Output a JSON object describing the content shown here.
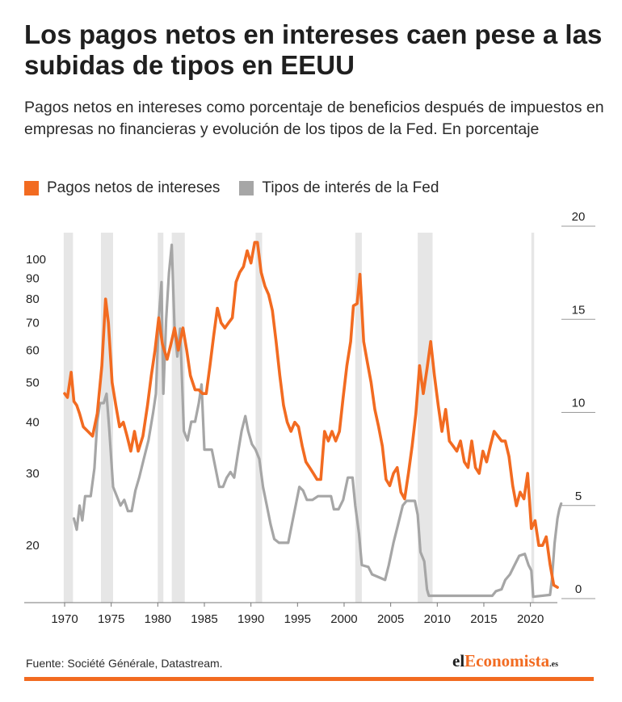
{
  "title": "Los pagos netos en intereses caen pese a las subidas de tipos en EEUU",
  "subtitle": "Pagos netos en intereses como porcentaje de beneficios después de impuestos en empresas no financieras y evolución de los tipos de la Fed. En porcentaje",
  "source": "Fuente: Société Générale, Datastream.",
  "logo": {
    "part1": "el",
    "part2": "Economista",
    "part3": ".es"
  },
  "colors": {
    "orange": "#f26b21",
    "gray": "#a6a6a6",
    "recession": "#e6e6e6",
    "text": "#222222"
  },
  "chart_data": {
    "type": "line",
    "xlim": [
      1970,
      2023.5
    ],
    "x_ticks": [
      1970,
      1975,
      1980,
      1985,
      1990,
      1995,
      2000,
      2005,
      2010,
      2015,
      2020
    ],
    "recessions": [
      [
        1969.9,
        1970.9
      ],
      [
        1973.9,
        1975.2
      ],
      [
        1980.0,
        1980.6
      ],
      [
        1981.5,
        1982.9
      ],
      [
        1990.5,
        1991.2
      ],
      [
        2001.2,
        2001.9
      ],
      [
        2007.9,
        2009.5
      ],
      [
        2020.1,
        2020.4
      ]
    ],
    "left_axis": {
      "scale": "log",
      "ylim": [
        14.5,
        120
      ],
      "ticks": [
        20,
        30,
        40,
        50,
        60,
        70,
        80,
        90,
        100
      ]
    },
    "right_axis": {
      "scale": "linear",
      "ylim": [
        0,
        20
      ],
      "ticks": [
        0,
        5,
        10,
        15,
        20
      ]
    },
    "series": [
      {
        "name": "Pagos netos de intereses",
        "axis": "left",
        "points": [
          [
            1970,
            47
          ],
          [
            1970.3,
            46
          ],
          [
            1970.7,
            53
          ],
          [
            1971,
            45
          ],
          [
            1971.3,
            44
          ],
          [
            1971.6,
            42
          ],
          [
            1972,
            39
          ],
          [
            1972.5,
            38
          ],
          [
            1973,
            37
          ],
          [
            1973.5,
            42
          ],
          [
            1974,
            55
          ],
          [
            1974.4,
            80
          ],
          [
            1974.7,
            70
          ],
          [
            1975.1,
            50
          ],
          [
            1975.5,
            44
          ],
          [
            1975.9,
            39
          ],
          [
            1976.3,
            40
          ],
          [
            1976.7,
            37
          ],
          [
            1977.1,
            34
          ],
          [
            1977.5,
            38
          ],
          [
            1977.9,
            34
          ],
          [
            1978.4,
            37
          ],
          [
            1978.9,
            44
          ],
          [
            1979.3,
            52
          ],
          [
            1979.7,
            60
          ],
          [
            1980.1,
            72
          ],
          [
            1980.5,
            62
          ],
          [
            1981,
            57
          ],
          [
            1981.4,
            62
          ],
          [
            1981.8,
            68
          ],
          [
            1982.2,
            60
          ],
          [
            1982.7,
            68
          ],
          [
            1983.1,
            60
          ],
          [
            1983.5,
            52
          ],
          [
            1984,
            48
          ],
          [
            1984.4,
            48
          ],
          [
            1984.8,
            47
          ],
          [
            1985.2,
            47
          ],
          [
            1985.6,
            55
          ],
          [
            1986,
            65
          ],
          [
            1986.4,
            76
          ],
          [
            1986.8,
            70
          ],
          [
            1987.2,
            68
          ],
          [
            1987.6,
            70
          ],
          [
            1988,
            72
          ],
          [
            1988.4,
            88
          ],
          [
            1988.8,
            93
          ],
          [
            1989.2,
            96
          ],
          [
            1989.6,
            105
          ],
          [
            1990,
            98
          ],
          [
            1990.4,
            110
          ],
          [
            1990.7,
            110
          ],
          [
            1991.1,
            93
          ],
          [
            1991.5,
            86
          ],
          [
            1991.9,
            82
          ],
          [
            1992.3,
            75
          ],
          [
            1992.7,
            63
          ],
          [
            1993.1,
            52
          ],
          [
            1993.5,
            44
          ],
          [
            1993.9,
            40
          ],
          [
            1994.3,
            38
          ],
          [
            1994.7,
            40
          ],
          [
            1995.1,
            39
          ],
          [
            1995.5,
            35
          ],
          [
            1995.9,
            32
          ],
          [
            1996.3,
            31
          ],
          [
            1996.7,
            30
          ],
          [
            1997.1,
            29
          ],
          [
            1997.5,
            29
          ],
          [
            1997.9,
            38
          ],
          [
            1998.3,
            36
          ],
          [
            1998.7,
            38
          ],
          [
            1999.1,
            36
          ],
          [
            1999.5,
            38
          ],
          [
            1999.9,
            46
          ],
          [
            2000.3,
            55
          ],
          [
            2000.7,
            63
          ],
          [
            2001,
            77
          ],
          [
            2001.4,
            78
          ],
          [
            2001.7,
            92
          ],
          [
            2002.1,
            63
          ],
          [
            2002.5,
            56
          ],
          [
            2002.9,
            50
          ],
          [
            2003.3,
            43
          ],
          [
            2003.7,
            39
          ],
          [
            2004.1,
            35
          ],
          [
            2004.5,
            29
          ],
          [
            2004.9,
            28
          ],
          [
            2005.3,
            30
          ],
          [
            2005.7,
            31
          ],
          [
            2006.1,
            27
          ],
          [
            2006.5,
            26
          ],
          [
            2006.9,
            30
          ],
          [
            2007.3,
            35
          ],
          [
            2007.7,
            42
          ],
          [
            2008.1,
            55
          ],
          [
            2008.5,
            47
          ],
          [
            2008.9,
            54
          ],
          [
            2009.3,
            63
          ],
          [
            2009.7,
            52
          ],
          [
            2010.1,
            44
          ],
          [
            2010.5,
            38
          ],
          [
            2010.9,
            43
          ],
          [
            2011.3,
            36
          ],
          [
            2011.7,
            35
          ],
          [
            2012.1,
            34
          ],
          [
            2012.5,
            36
          ],
          [
            2012.9,
            32
          ],
          [
            2013.3,
            31
          ],
          [
            2013.7,
            36
          ],
          [
            2014.1,
            31
          ],
          [
            2014.5,
            30
          ],
          [
            2014.9,
            34
          ],
          [
            2015.3,
            32
          ],
          [
            2015.7,
            35
          ],
          [
            2016.1,
            38
          ],
          [
            2016.5,
            37
          ],
          [
            2016.9,
            36
          ],
          [
            2017.3,
            36
          ],
          [
            2017.7,
            33
          ],
          [
            2018.1,
            28
          ],
          [
            2018.5,
            25
          ],
          [
            2018.9,
            27
          ],
          [
            2019.3,
            26
          ],
          [
            2019.7,
            30
          ],
          [
            2020.1,
            22
          ],
          [
            2020.5,
            23
          ],
          [
            2020.9,
            20
          ],
          [
            2021.3,
            20
          ],
          [
            2021.7,
            21
          ],
          [
            2022.1,
            18
          ],
          [
            2022.5,
            16
          ],
          [
            2022.9,
            15.8
          ]
        ]
      },
      {
        "name": "Tipos de interés de la Fed",
        "axis": "right",
        "points": [
          [
            1971,
            4.3
          ],
          [
            1971.3,
            3.7
          ],
          [
            1971.6,
            5
          ],
          [
            1971.9,
            4.2
          ],
          [
            1972.2,
            5.5
          ],
          [
            1972.8,
            5.5
          ],
          [
            1973.2,
            7
          ],
          [
            1973.5,
            9.5
          ],
          [
            1973.8,
            10.5
          ],
          [
            1974.2,
            10.5
          ],
          [
            1974.5,
            11
          ],
          [
            1974.8,
            9
          ],
          [
            1975.2,
            6
          ],
          [
            1975.6,
            5.5
          ],
          [
            1976,
            5
          ],
          [
            1976.4,
            5.3
          ],
          [
            1976.8,
            4.7
          ],
          [
            1977.2,
            4.7
          ],
          [
            1977.6,
            5.8
          ],
          [
            1978,
            6.5
          ],
          [
            1978.5,
            7.5
          ],
          [
            1979,
            8.5
          ],
          [
            1979.5,
            10
          ],
          [
            1979.8,
            11
          ],
          [
            1980.1,
            15
          ],
          [
            1980.4,
            17
          ],
          [
            1980.6,
            11
          ],
          [
            1980.9,
            15
          ],
          [
            1981.2,
            17.5
          ],
          [
            1981.5,
            19
          ],
          [
            1981.8,
            14.5
          ],
          [
            1982.1,
            13
          ],
          [
            1982.4,
            14.5
          ],
          [
            1982.8,
            9
          ],
          [
            1983.2,
            8.5
          ],
          [
            1983.6,
            9.5
          ],
          [
            1984,
            9.5
          ],
          [
            1984.4,
            10.5
          ],
          [
            1984.7,
            11.5
          ],
          [
            1985,
            8
          ],
          [
            1985.4,
            8
          ],
          [
            1985.8,
            8
          ],
          [
            1986.2,
            7
          ],
          [
            1986.6,
            6
          ],
          [
            1987,
            6
          ],
          [
            1987.4,
            6.5
          ],
          [
            1987.8,
            6.8
          ],
          [
            1988.2,
            6.5
          ],
          [
            1988.6,
            7.8
          ],
          [
            1989,
            9
          ],
          [
            1989.4,
            9.8
          ],
          [
            1989.7,
            9
          ],
          [
            1990.1,
            8.3
          ],
          [
            1990.5,
            8
          ],
          [
            1990.9,
            7.5
          ],
          [
            1991.3,
            6
          ],
          [
            1991.7,
            5
          ],
          [
            1992.1,
            4
          ],
          [
            1992.5,
            3.2
          ],
          [
            1993,
            3
          ],
          [
            1994,
            3
          ],
          [
            1994.4,
            4
          ],
          [
            1994.8,
            5
          ],
          [
            1995.2,
            6
          ],
          [
            1995.6,
            5.8
          ],
          [
            1996,
            5.3
          ],
          [
            1996.6,
            5.3
          ],
          [
            1997.2,
            5.5
          ],
          [
            1998.6,
            5.5
          ],
          [
            1998.9,
            4.8
          ],
          [
            1999.4,
            4.8
          ],
          [
            1999.9,
            5.3
          ],
          [
            2000.4,
            6.5
          ],
          [
            2000.9,
            6.5
          ],
          [
            2001.2,
            5
          ],
          [
            2001.6,
            3.5
          ],
          [
            2001.9,
            1.8
          ],
          [
            2002.6,
            1.7
          ],
          [
            2003,
            1.3
          ],
          [
            2004.4,
            1
          ],
          [
            2004.8,
            1.8
          ],
          [
            2005.3,
            3
          ],
          [
            2005.8,
            4
          ],
          [
            2006.3,
            5
          ],
          [
            2006.7,
            5.25
          ],
          [
            2007.6,
            5.25
          ],
          [
            2007.9,
            4.5
          ],
          [
            2008.2,
            2.5
          ],
          [
            2008.6,
            2
          ],
          [
            2008.9,
            0.5
          ],
          [
            2009.1,
            0.15
          ],
          [
            2015.9,
            0.15
          ],
          [
            2016.3,
            0.4
          ],
          [
            2016.9,
            0.5
          ],
          [
            2017.3,
            1
          ],
          [
            2017.8,
            1.3
          ],
          [
            2018.3,
            1.8
          ],
          [
            2018.8,
            2.3
          ],
          [
            2019.4,
            2.4
          ],
          [
            2019.8,
            1.8
          ],
          [
            2020.1,
            1.5
          ],
          [
            2020.3,
            0.1
          ],
          [
            2022.1,
            0.2
          ],
          [
            2022.3,
            1
          ],
          [
            2022.6,
            3
          ],
          [
            2022.9,
            4.3
          ],
          [
            2023.1,
            4.8
          ],
          [
            2023.3,
            5.1
          ]
        ]
      }
    ]
  }
}
